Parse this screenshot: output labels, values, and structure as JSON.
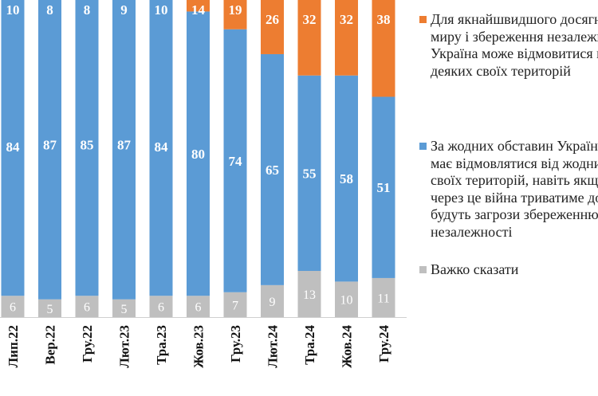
{
  "chart_data": {
    "type": "bar",
    "stacked": true,
    "normalized_percent": true,
    "categories": [
      "Лип.22",
      "Вер.22",
      "Гру.22",
      "Лют.23",
      "Тра.23",
      "Жов.23",
      "Гру.23",
      "Лют.24",
      "Тра.24",
      "Жов.24",
      "Гру.24"
    ],
    "series": [
      {
        "key": "hard",
        "values": [
          6,
          5,
          6,
          5,
          6,
          6,
          7,
          9,
          13,
          10,
          11
        ],
        "color": "#BFBFBF"
      },
      {
        "key": "no",
        "values": [
          84,
          87,
          85,
          87,
          84,
          80,
          74,
          65,
          55,
          58,
          51
        ],
        "color": "#5B9BD5"
      },
      {
        "key": "yes",
        "values": [
          10,
          8,
          8,
          9,
          10,
          14,
          19,
          26,
          32,
          32,
          38
        ],
        "color": "#ED7D31"
      }
    ],
    "ylim": [
      0,
      100
    ],
    "grid": false,
    "legend_position": "right"
  },
  "legend": {
    "items": [
      {
        "key": "yes",
        "color": "#ED7D31",
        "lines": [
          "Для якнайшвидшого досягнення",
          "миру і збереження незалежності",
          "Україна може відмовитися від",
          "деяких своїх територій"
        ]
      },
      {
        "key": "no",
        "color": "#5B9BD5",
        "lines": [
          "За жодних обставин Україна не",
          "має відмовлятися від жодних",
          "своїх територій, навіть якщо",
          "через це війна триватиме довше",
          "будуть загрози збереженню",
          "незалежності"
        ]
      },
      {
        "key": "hard",
        "color": "#BFBFBF",
        "lines": [
          "Важко сказати"
        ]
      }
    ]
  }
}
